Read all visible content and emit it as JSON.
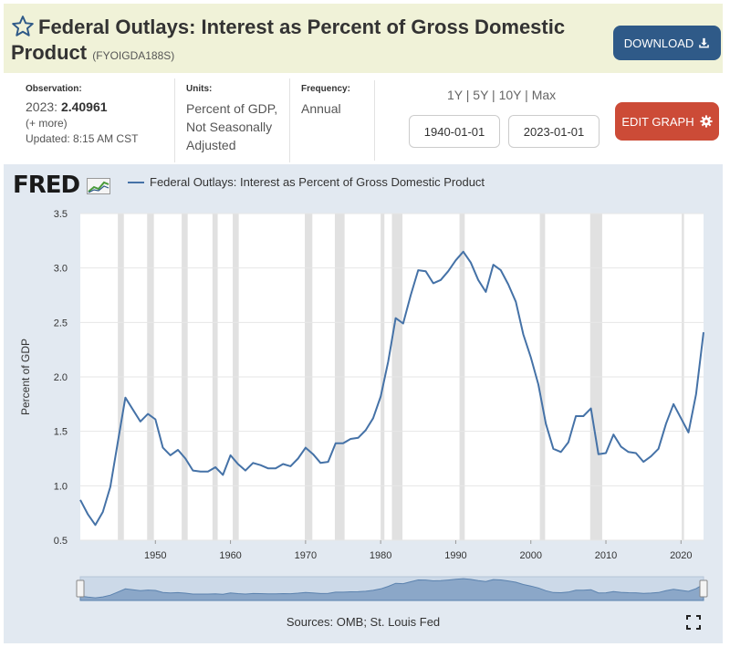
{
  "header": {
    "title": "Federal Outlays: Interest as Percent of Gross Domestic Product",
    "series_id": "(FYOIGDA188S)",
    "download_label": "DOWNLOAD"
  },
  "info": {
    "observation_label": "Observation:",
    "observation_period": "2023:",
    "observation_value": "2.40961",
    "more_label": "(+ more)",
    "updated": "Updated: 8:15 AM CST",
    "units_label": "Units:",
    "units_line1": "Percent of GDP,",
    "units_line2": "Not Seasonally",
    "units_line3": "Adjusted",
    "frequency_label": "Frequency:",
    "frequency_value": "Annual"
  },
  "controls": {
    "range_1y": "1Y",
    "range_5y": "5Y",
    "range_10y": "10Y",
    "range_max": "Max",
    "start_date": "1940-01-01",
    "end_date": "2023-01-01",
    "edit_label": "EDIT GRAPH"
  },
  "logo": {
    "text": "FRED"
  },
  "sources": "Sources: OMB; St. Louis Fed",
  "colors": {
    "header_bg": "#f0f2d8",
    "download_btn": "#2f5a88",
    "edit_btn": "#cc4b37",
    "panel_bg": "#e2e9f1",
    "series_line": "#4572a7",
    "recession_band": "#e1e1e1"
  },
  "chart_data": {
    "type": "line",
    "ylabel": "Percent of GDP",
    "ylim": [
      0.5,
      3.5
    ],
    "xlim": [
      1940,
      2023
    ],
    "y_ticks": [
      0.5,
      1.0,
      1.5,
      2.0,
      2.5,
      3.0,
      3.5
    ],
    "y_tick_labels": [
      "0.5",
      "1.0",
      "1.5",
      "2.0",
      "2.5",
      "3.0",
      "3.5"
    ],
    "x_ticks": [
      1950,
      1960,
      1970,
      1980,
      1990,
      2000,
      2010,
      2020
    ],
    "x_tick_labels": [
      "1950",
      "1960",
      "1970",
      "1980",
      "1990",
      "2000",
      "2010",
      "2020"
    ],
    "grid": "horizontal",
    "legend": "top-left",
    "recessions": [
      [
        1945,
        1945.8
      ],
      [
        1948.9,
        1949.8
      ],
      [
        1953.5,
        1954.3
      ],
      [
        1957.6,
        1958.3
      ],
      [
        1960.3,
        1961.1
      ],
      [
        1969.9,
        1970.9
      ],
      [
        1973.9,
        1975.2
      ],
      [
        1980,
        1980.5
      ],
      [
        1981.5,
        1982.9
      ],
      [
        1990.5,
        1991.2
      ],
      [
        2001.2,
        2001.9
      ],
      [
        2007.9,
        2009.5
      ],
      [
        2020.1,
        2020.4
      ]
    ],
    "series": [
      {
        "name": "Federal Outlays: Interest as Percent of Gross Domestic Product",
        "x": [
          1940,
          1941,
          1942,
          1943,
          1944,
          1945,
          1946,
          1947,
          1948,
          1949,
          1950,
          1951,
          1952,
          1953,
          1954,
          1955,
          1956,
          1957,
          1958,
          1959,
          1960,
          1961,
          1962,
          1963,
          1964,
          1965,
          1966,
          1967,
          1968,
          1969,
          1970,
          1971,
          1972,
          1973,
          1974,
          1975,
          1976,
          1977,
          1978,
          1979,
          1980,
          1981,
          1982,
          1983,
          1984,
          1985,
          1986,
          1987,
          1988,
          1989,
          1990,
          1991,
          1992,
          1993,
          1994,
          1995,
          1996,
          1997,
          1998,
          1999,
          2000,
          2001,
          2002,
          2003,
          2004,
          2005,
          2006,
          2007,
          2008,
          2009,
          2010,
          2011,
          2012,
          2013,
          2014,
          2015,
          2016,
          2017,
          2018,
          2019,
          2020,
          2021,
          2022,
          2023
        ],
        "y": [
          0.87,
          0.74,
          0.64,
          0.76,
          0.99,
          1.4,
          1.81,
          1.7,
          1.59,
          1.66,
          1.61,
          1.35,
          1.28,
          1.33,
          1.25,
          1.14,
          1.13,
          1.13,
          1.17,
          1.1,
          1.28,
          1.2,
          1.14,
          1.21,
          1.19,
          1.16,
          1.16,
          1.2,
          1.18,
          1.25,
          1.35,
          1.29,
          1.21,
          1.22,
          1.39,
          1.39,
          1.43,
          1.44,
          1.51,
          1.62,
          1.82,
          2.14,
          2.54,
          2.49,
          2.75,
          2.98,
          2.97,
          2.86,
          2.89,
          2.97,
          3.07,
          3.15,
          3.05,
          2.89,
          2.78,
          3.03,
          2.98,
          2.85,
          2.69,
          2.39,
          2.18,
          1.93,
          1.57,
          1.34,
          1.31,
          1.4,
          1.64,
          1.64,
          1.71,
          1.29,
          1.3,
          1.47,
          1.36,
          1.31,
          1.3,
          1.22,
          1.27,
          1.34,
          1.57,
          1.75,
          1.62,
          1.49,
          1.84,
          2.41
        ]
      }
    ]
  }
}
